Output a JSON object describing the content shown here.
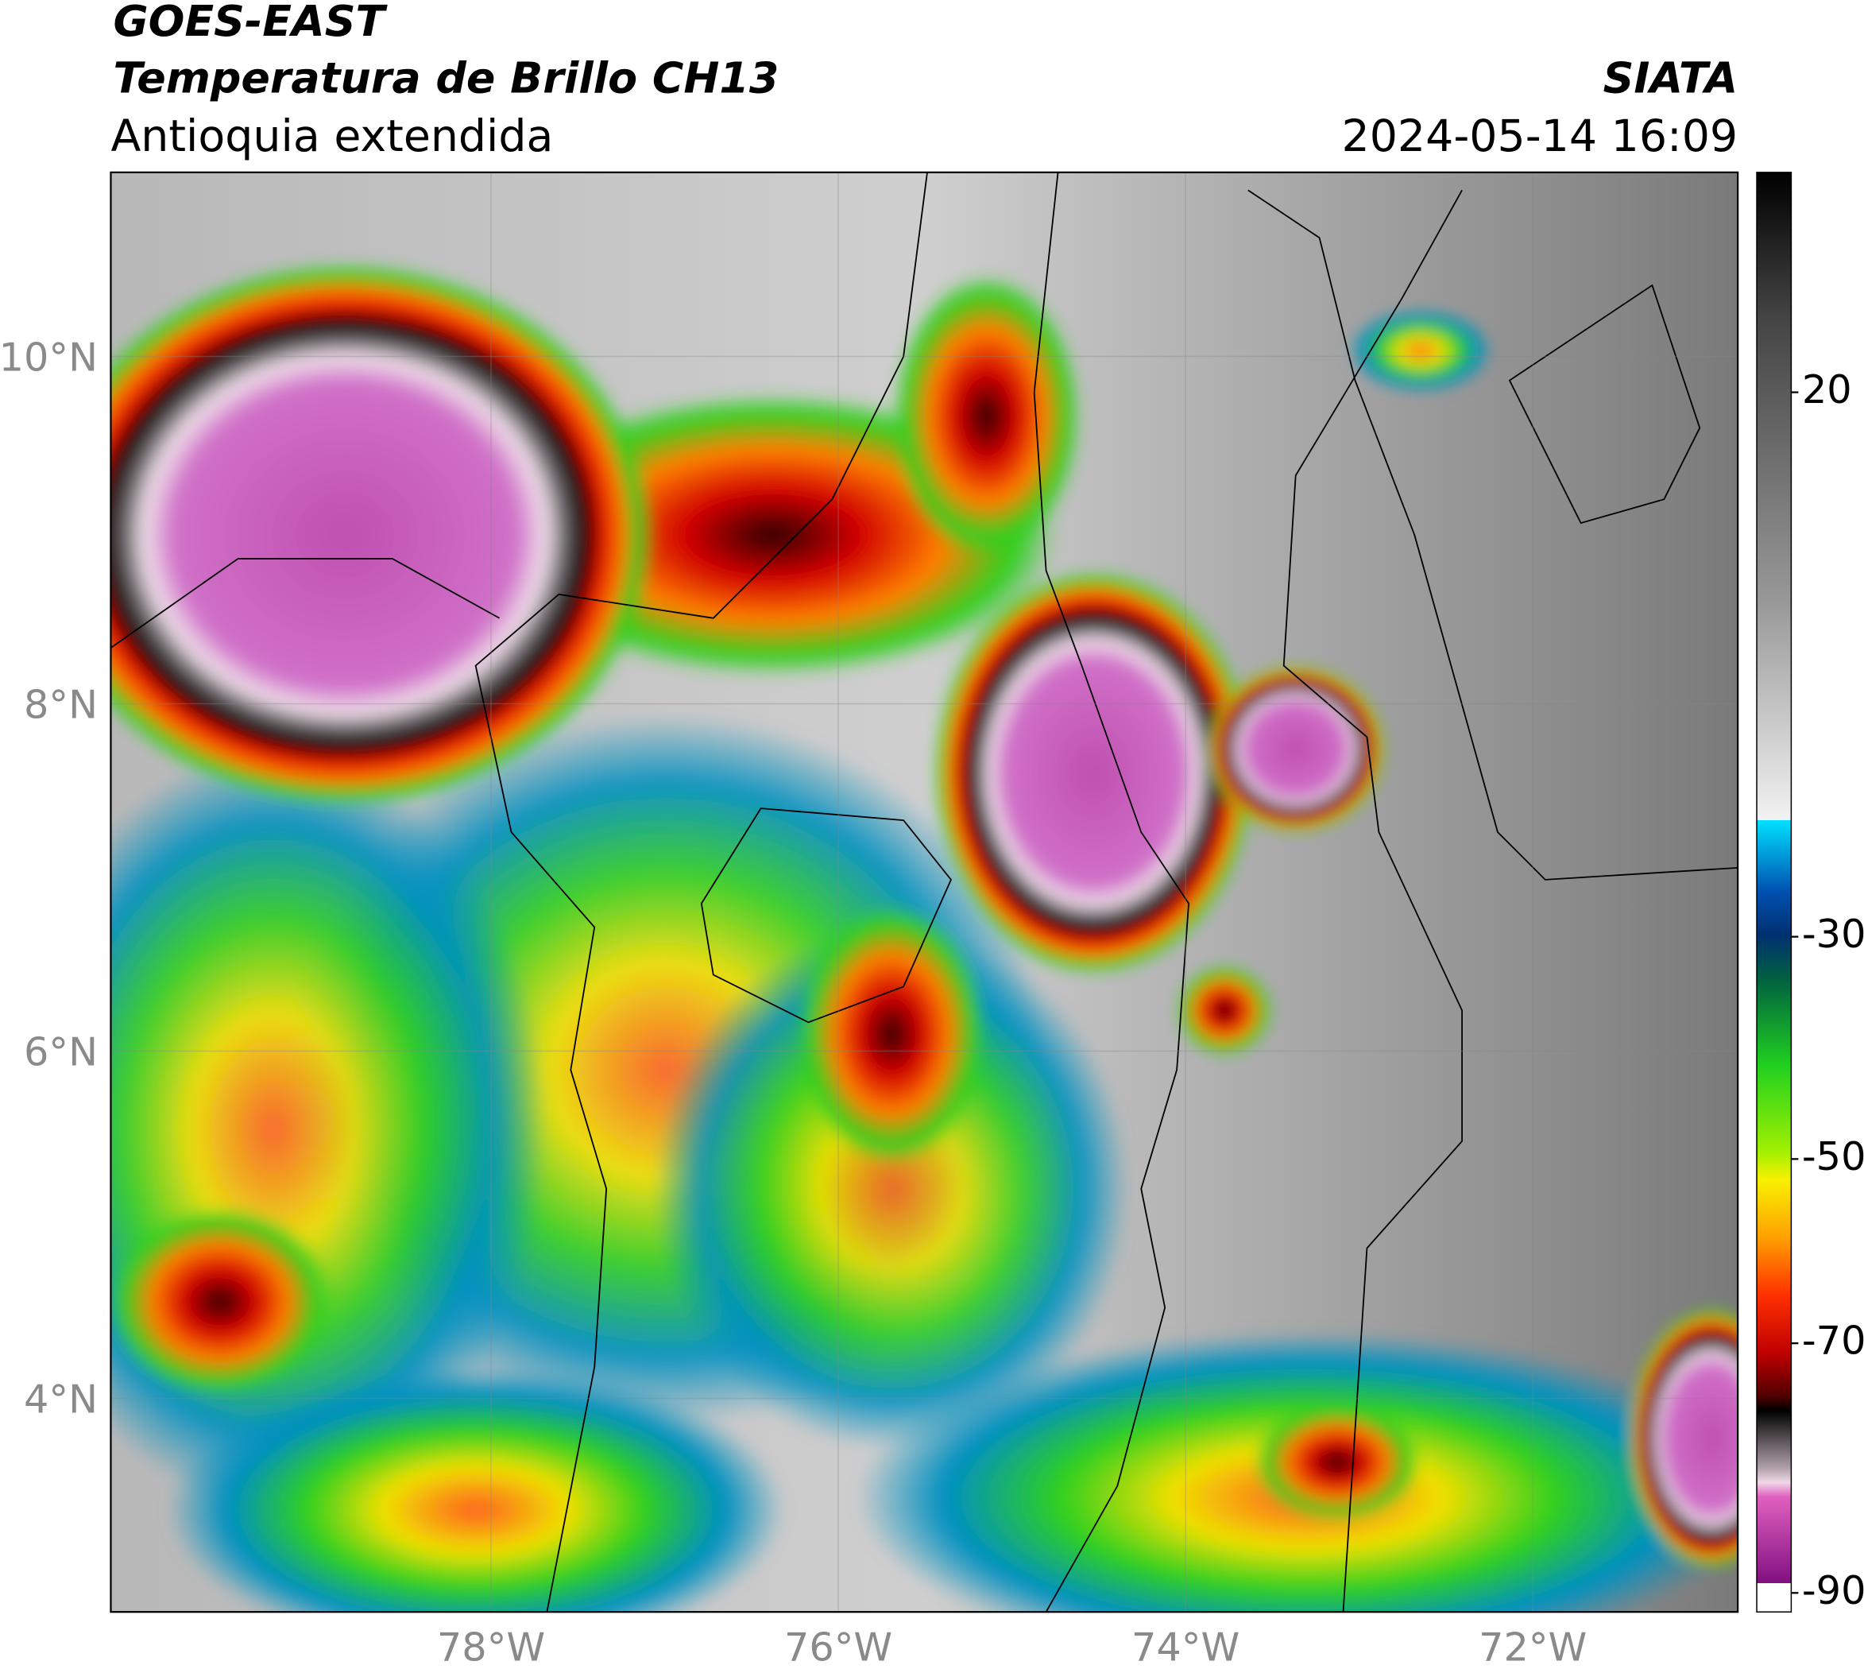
{
  "header": {
    "title": "GOES-EAST",
    "subtitle": "Temperatura de Brillo CH13",
    "region": "Antioquia extendida",
    "source": "SIATA",
    "datetime": "2024-05-14 16:09"
  },
  "map": {
    "xlim": [
      -80.19,
      -70.82
    ],
    "ylim": [
      2.77,
      11.06
    ],
    "xticks": [
      {
        "value": -78,
        "label": "78°W"
      },
      {
        "value": -76,
        "label": "76°W"
      },
      {
        "value": -74,
        "label": "74°W"
      },
      {
        "value": -72,
        "label": "72°W"
      }
    ],
    "yticks": [
      {
        "value": 10,
        "label": "10°N"
      },
      {
        "value": 8,
        "label": "8°N"
      },
      {
        "value": 6,
        "label": "6°N"
      },
      {
        "value": 4,
        "label": "4°N"
      }
    ]
  },
  "colorbar": {
    "ticks": [
      20,
      -30,
      -50,
      -70,
      -90
    ]
  }
}
